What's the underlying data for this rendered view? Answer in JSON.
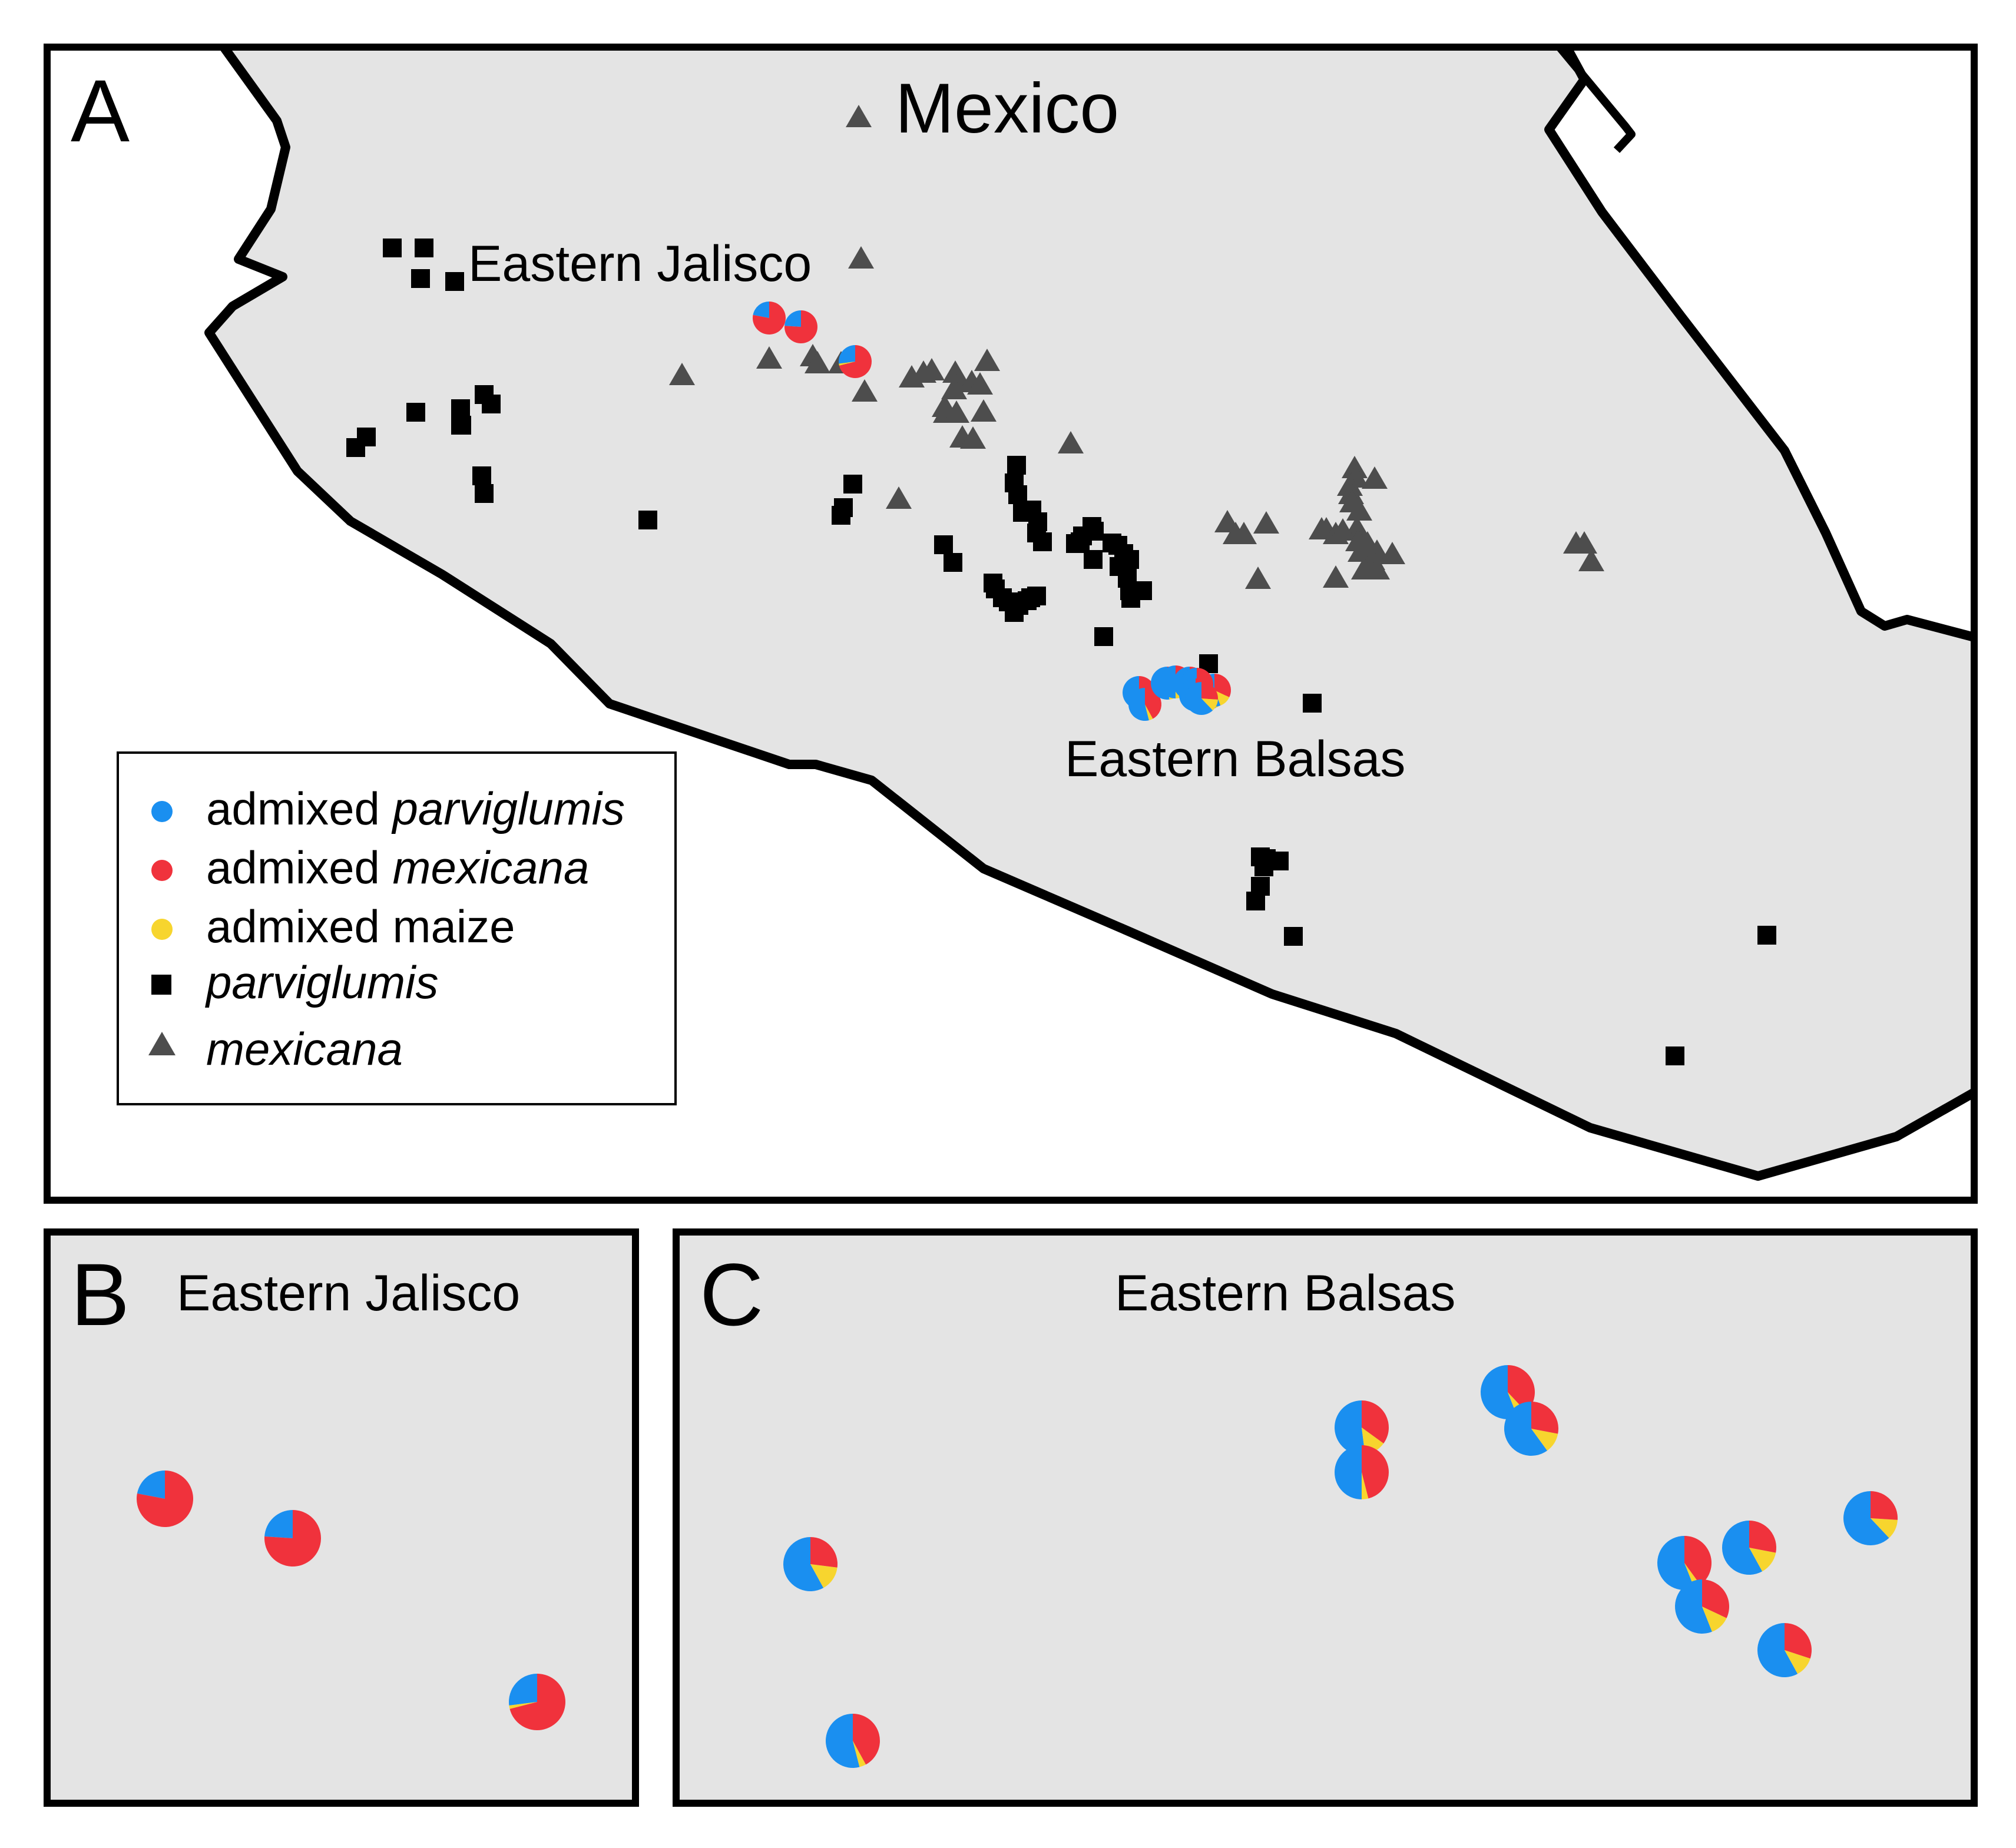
{
  "colors": {
    "background": "#ffffff",
    "land": "#e4e4e4",
    "border": "#000000",
    "parviglumis": "#000000",
    "mexicana": "#4d4d4d",
    "admixed_parviglumis": "#1a8ff0",
    "admixed_mexicana": "#f0323c",
    "admixed_maize": "#f7d52e"
  },
  "panels": {
    "a": {
      "letter": "A",
      "country": "Mexico",
      "region1": "Eastern Jalisco",
      "region2": "Eastern Balsas"
    },
    "b": {
      "letter": "B",
      "title": "Eastern Jalisco"
    },
    "c": {
      "letter": "C",
      "title": "Eastern Balsas"
    }
  },
  "legend": {
    "items": [
      {
        "prefix": "admixed ",
        "taxon": "parviglumis",
        "symbol": "circle",
        "color": "admixed_parviglumis"
      },
      {
        "prefix": "admixed ",
        "taxon": "mexicana",
        "symbol": "circle",
        "color": "admixed_mexicana"
      },
      {
        "prefix": "admixed maize",
        "taxon": "",
        "symbol": "circle",
        "color": "admixed_maize"
      },
      {
        "prefix": "",
        "taxon": "parviglumis",
        "symbol": "square",
        "color": "parviglumis"
      },
      {
        "prefix": "",
        "taxon": "mexicana",
        "symbol": "triangle",
        "color": "mexicana"
      }
    ]
  },
  "admixture_jalisco": [
    {
      "parviglumis": 0.22,
      "mexicana": 0.78,
      "maize": 0.0
    },
    {
      "parviglumis": 0.24,
      "mexicana": 0.76,
      "maize": 0.0
    },
    {
      "parviglumis": 0.27,
      "mexicana": 0.71,
      "maize": 0.02
    }
  ],
  "admixture_balsas": [
    {
      "parviglumis": 0.58,
      "mexicana": 0.27,
      "maize": 0.15
    },
    {
      "parviglumis": 0.54,
      "mexicana": 0.42,
      "maize": 0.04
    },
    {
      "parviglumis": 0.52,
      "mexicana": 0.35,
      "maize": 0.13
    },
    {
      "parviglumis": 0.5,
      "mexicana": 0.46,
      "maize": 0.04
    },
    {
      "parviglumis": 0.56,
      "mexicana": 0.38,
      "maize": 0.06
    },
    {
      "parviglumis": 0.6,
      "mexicana": 0.28,
      "maize": 0.12
    },
    {
      "parviglumis": 0.56,
      "mexicana": 0.4,
      "maize": 0.04
    },
    {
      "parviglumis": 0.56,
      "mexicana": 0.32,
      "maize": 0.12
    },
    {
      "parviglumis": 0.58,
      "mexicana": 0.28,
      "maize": 0.14
    },
    {
      "parviglumis": 0.58,
      "mexicana": 0.3,
      "maize": 0.12
    },
    {
      "parviglumis": 0.62,
      "mexicana": 0.26,
      "maize": 0.12
    }
  ]
}
